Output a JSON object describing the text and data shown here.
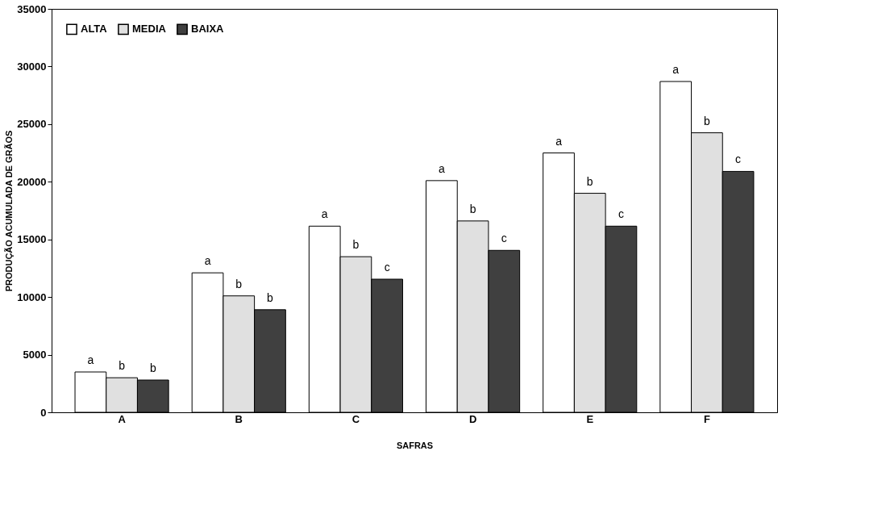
{
  "chart_data": {
    "type": "bar",
    "xlabel": "SAFRAS",
    "ylabel": "PRODUÇÃO ACUMULADA DE GRÃOS",
    "categories": [
      "A",
      "B",
      "C",
      "D",
      "E",
      "F"
    ],
    "series": [
      {
        "name": "ALTA",
        "color": "#ffffff",
        "values": [
          3500,
          12100,
          16150,
          20100,
          22500,
          28700
        ],
        "value_labels": [
          "a",
          "a",
          "a",
          "a",
          "a",
          "a"
        ]
      },
      {
        "name": "MEDIA",
        "color": "#e0e0e0",
        "values": [
          3000,
          10100,
          13500,
          16600,
          19000,
          24250
        ],
        "value_labels": [
          "b",
          "b",
          "b",
          "b",
          "b",
          "b"
        ]
      },
      {
        "name": "BAIXA",
        "color": "#404040",
        "values": [
          2800,
          8900,
          11550,
          14050,
          16150,
          20900
        ],
        "value_labels": [
          "b",
          "b",
          "c",
          "c",
          "c",
          "c"
        ]
      }
    ],
    "ylim": [
      0,
      35000
    ],
    "yticks": [
      0,
      5000,
      10000,
      15000,
      20000,
      25000,
      30000,
      35000
    ],
    "legend": "top left",
    "grid": false
  }
}
